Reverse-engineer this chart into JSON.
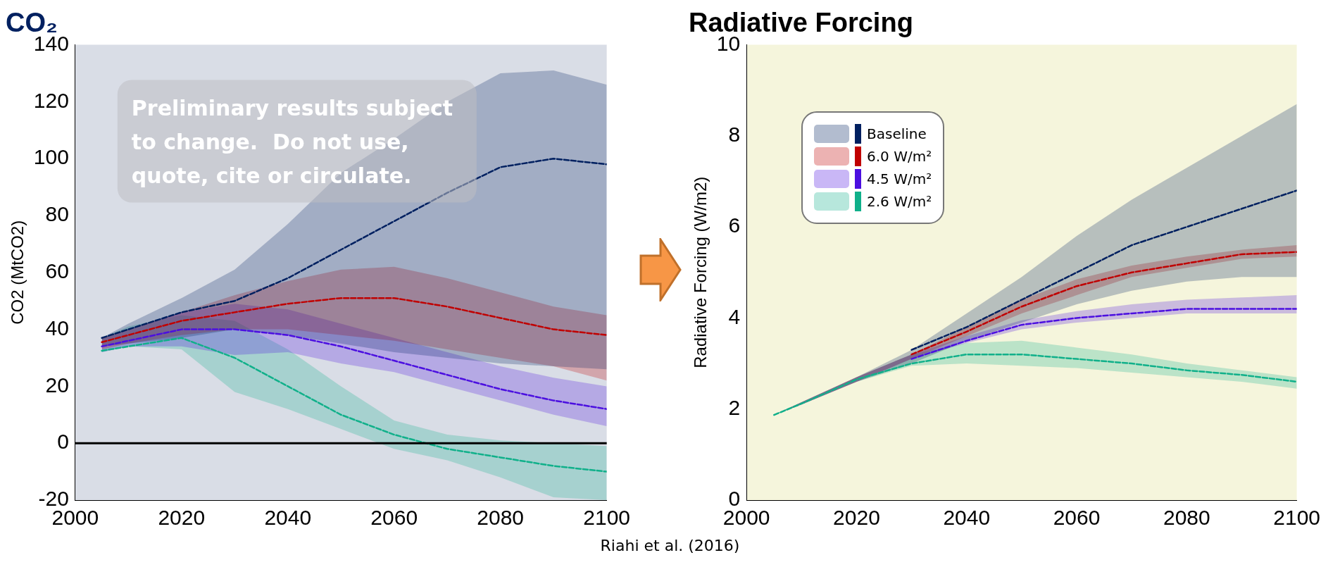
{
  "chart_data": [
    {
      "type": "line",
      "title": "CO₂",
      "ylabel": "CO2 (MtCO2)",
      "x": [
        2005,
        2010,
        2020,
        2030,
        2040,
        2050,
        2060,
        2070,
        2080,
        2090,
        2100
      ],
      "xlim": [
        2000,
        2100
      ],
      "xticks": [
        2000,
        2020,
        2040,
        2060,
        2080,
        2100
      ],
      "ylim": [
        -20,
        140
      ],
      "yticks": [
        -20,
        0,
        20,
        40,
        60,
        80,
        100,
        120,
        140
      ],
      "grid": false,
      "legend": false,
      "line_style": "dashed",
      "marker": "none",
      "ref_lines": [
        {
          "axis": "y",
          "value": 0,
          "color": "#000000"
        }
      ],
      "annotations": [
        "Preliminary results subject to change.  Do not use, quote, cite or circulate.",
        "Riahi et al. (2016)"
      ],
      "series": [
        {
          "color": "#002060",
          "values": [
            37,
            40,
            46,
            50,
            58,
            68,
            78,
            88,
            97,
            100,
            98
          ],
          "lower": [
            34,
            35,
            37,
            40,
            38,
            35,
            32,
            30,
            28,
            27,
            26
          ],
          "upper": [
            37,
            42,
            51,
            61,
            77,
            95,
            107,
            120,
            130,
            131,
            126
          ]
        },
        {
          "color": "#c00000",
          "values": [
            35.5,
            38,
            43,
            46,
            49,
            51,
            51,
            48,
            44,
            40,
            38
          ],
          "lower": [
            33,
            35,
            38,
            40,
            40,
            38,
            36,
            33,
            30,
            27,
            22
          ],
          "upper": [
            37,
            40,
            46,
            52,
            57,
            61,
            62,
            58,
            53,
            48,
            45
          ]
        },
        {
          "color": "#4b0fe0",
          "values": [
            34,
            36,
            40,
            40,
            38,
            34,
            29,
            24,
            19,
            15,
            12
          ],
          "lower": [
            32,
            34,
            34,
            31,
            32,
            28,
            25,
            20,
            15,
            10,
            6
          ],
          "upper": [
            37,
            40,
            46,
            49,
            47,
            42,
            37,
            32,
            27,
            23,
            20
          ]
        },
        {
          "color": "#10b08a",
          "values": [
            32.5,
            34,
            37,
            30,
            20,
            10,
            3,
            -2,
            -5,
            -8,
            -10
          ],
          "lower": [
            32,
            34,
            33,
            18,
            12,
            5,
            -2,
            -6,
            -12,
            -19,
            -20
          ],
          "upper": [
            37,
            41,
            45,
            43,
            33,
            20,
            8,
            3,
            1,
            0,
            -1
          ]
        }
      ]
    },
    {
      "type": "line",
      "title": "Radiative Forcing",
      "ylabel": "Radiative Forcing (W/m2)",
      "x": [
        2005,
        2010,
        2020,
        2030,
        2040,
        2050,
        2060,
        2070,
        2080,
        2090,
        2100
      ],
      "xlim": [
        2000,
        2100
      ],
      "xticks": [
        2000,
        2020,
        2040,
        2060,
        2080,
        2100
      ],
      "ylim": [
        0,
        10
      ],
      "yticks": [
        0,
        2,
        4,
        6,
        8,
        10
      ],
      "grid": false,
      "legend": "top left",
      "line_style": "dashed",
      "marker": "none",
      "series": [
        {
          "name": "Baseline",
          "color": "#002060",
          "values": [
            null,
            null,
            null,
            3.3,
            3.8,
            4.4,
            5.0,
            5.6,
            6.0,
            6.4,
            6.8
          ],
          "lower": [
            1.87,
            2.1,
            2.6,
            3.0,
            3.5,
            3.9,
            4.3,
            4.6,
            4.8,
            4.9,
            4.9
          ],
          "upper": [
            1.87,
            2.15,
            2.7,
            3.3,
            4.1,
            4.9,
            5.8,
            6.6,
            7.3,
            8.0,
            8.7
          ]
        },
        {
          "name": "6.0 W/m²",
          "color": "#c00000",
          "values": [
            null,
            null,
            null,
            3.2,
            3.7,
            4.25,
            4.7,
            5.0,
            5.2,
            5.4,
            5.45
          ],
          "lower": [
            1.87,
            2.1,
            2.6,
            3.1,
            3.6,
            4.1,
            4.5,
            4.9,
            5.1,
            5.3,
            5.35
          ],
          "upper": [
            1.87,
            2.15,
            2.7,
            3.2,
            3.8,
            4.4,
            4.85,
            5.15,
            5.35,
            5.5,
            5.6
          ]
        },
        {
          "name": "4.5 W/m²",
          "color": "#4b0fe0",
          "values": [
            null,
            null,
            null,
            3.1,
            3.5,
            3.85,
            4.0,
            4.1,
            4.2,
            4.2,
            4.2
          ],
          "lower": [
            1.87,
            2.1,
            2.6,
            3.1,
            3.45,
            3.75,
            3.9,
            4.0,
            4.1,
            4.1,
            4.1
          ],
          "upper": [
            1.87,
            2.15,
            2.7,
            3.2,
            3.6,
            3.95,
            4.15,
            4.3,
            4.4,
            4.45,
            4.5
          ]
        },
        {
          "name": "2.6 W/m²",
          "color": "#10b08a",
          "values": [
            1.87,
            2.12,
            2.65,
            3.0,
            3.2,
            3.2,
            3.1,
            3.0,
            2.85,
            2.75,
            2.6
          ],
          "lower": [
            1.87,
            2.1,
            2.6,
            2.95,
            3.0,
            2.95,
            2.9,
            2.8,
            2.7,
            2.6,
            2.45
          ],
          "upper": [
            1.87,
            2.15,
            2.7,
            3.2,
            3.45,
            3.5,
            3.35,
            3.2,
            3.0,
            2.85,
            2.7
          ]
        }
      ]
    }
  ]
}
